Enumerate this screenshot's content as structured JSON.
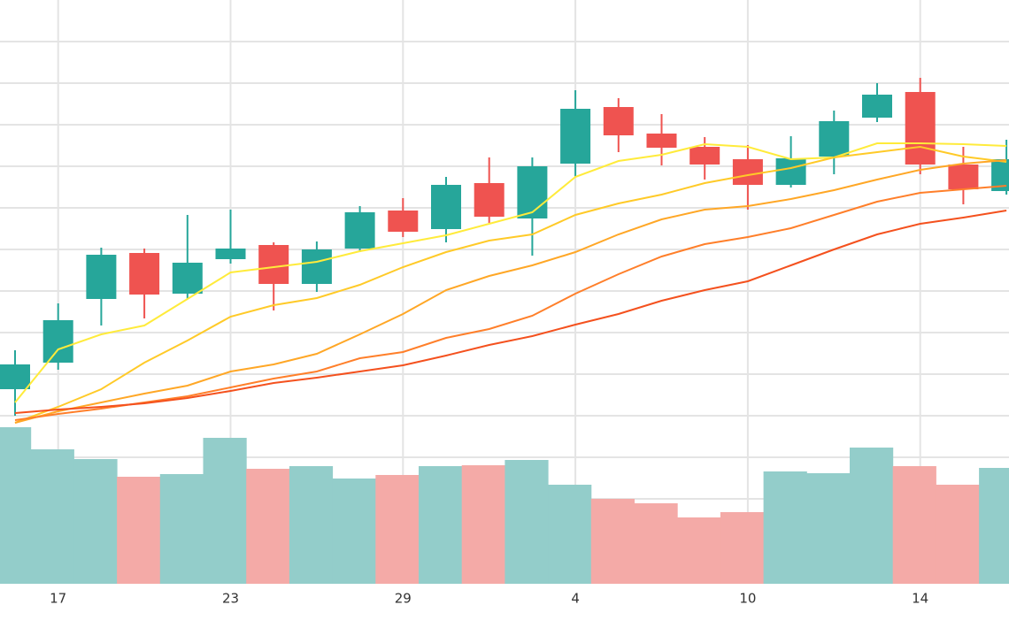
{
  "chart_data": {
    "type": "candlestick",
    "categories": [
      null,
      "17",
      null,
      null,
      null,
      "23",
      null,
      null,
      null,
      "29",
      null,
      null,
      null,
      "4",
      null,
      null,
      null,
      "10",
      null,
      null,
      null,
      "14",
      null,
      null
    ],
    "open": [
      220,
      250,
      322,
      374,
      328,
      367,
      383,
      339,
      379,
      422,
      401,
      453,
      413,
      475,
      539,
      509,
      494,
      480,
      451,
      483,
      527,
      556,
      474,
      444
    ],
    "high": [
      264,
      317,
      380,
      379,
      417,
      423,
      386,
      387,
      427,
      436,
      460,
      482,
      482,
      558,
      549,
      531,
      505,
      496,
      506,
      535,
      566,
      572,
      494,
      502
    ],
    "low": [
      190,
      242,
      292,
      300,
      322,
      362,
      309,
      330,
      375,
      392,
      386,
      408,
      371,
      460,
      488,
      473,
      457,
      423,
      448,
      463,
      522,
      463,
      429,
      440
    ],
    "close": [
      248,
      298,
      372,
      327,
      363,
      379,
      339,
      378,
      420,
      398,
      451,
      415,
      472,
      537,
      507,
      493,
      474,
      451,
      481,
      523,
      553,
      474,
      446,
      480
    ],
    "volume": [
      177,
      152,
      141,
      121,
      124,
      165,
      130,
      133,
      119,
      123,
      133,
      134,
      140,
      112,
      96,
      91,
      75,
      81,
      127,
      125,
      154,
      133,
      112,
      131
    ],
    "up_color": "#26a69a",
    "down_color": "#ef5350",
    "volume_up_color": "#93cdca",
    "volume_down_color": "#f4aaa7",
    "moving_averages": [
      {
        "color": "#ffeb3b",
        "values": [
          205,
          265,
          282,
          292,
          322,
          352,
          358,
          364,
          376,
          385,
          394,
          407,
          420,
          460,
          478,
          485,
          497,
          494,
          480,
          482,
          498,
          498,
          497,
          495
        ]
      },
      {
        "color": "#ffca28",
        "values": [
          182,
          200,
          220,
          250,
          275,
          302,
          315,
          323,
          338,
          358,
          375,
          388,
          395,
          417,
          430,
          440,
          453,
          462,
          470,
          482,
          488,
          494,
          483,
          477
        ]
      },
      {
        "color": "#ffa726",
        "values": [
          182,
          195,
          205,
          215,
          224,
          240,
          248,
          260,
          282,
          305,
          332,
          348,
          360,
          375,
          395,
          412,
          423,
          427,
          435,
          445,
          457,
          468,
          475,
          479
        ]
      },
      {
        "color": "#ff7f2a",
        "values": [
          185,
          192,
          198,
          205,
          212,
          222,
          232,
          240,
          255,
          262,
          278,
          288,
          303,
          328,
          350,
          370,
          384,
          392,
          402,
          417,
          432,
          442,
          446,
          450
        ]
      },
      {
        "color": "#f4511e",
        "values": [
          193,
          197,
          200,
          204,
          210,
          218,
          227,
          233,
          240,
          247,
          258,
          270,
          280,
          293,
          305,
          320,
          332,
          342,
          360,
          378,
          395,
          407,
          414,
          422
        ]
      }
    ],
    "ylim": [
      0,
      660
    ],
    "yticks": [
      49,
      96,
      143,
      190,
      237,
      284,
      331,
      378,
      425,
      472,
      519,
      566,
      613
    ],
    "y2lim": [
      0,
      660
    ],
    "grid": true
  }
}
